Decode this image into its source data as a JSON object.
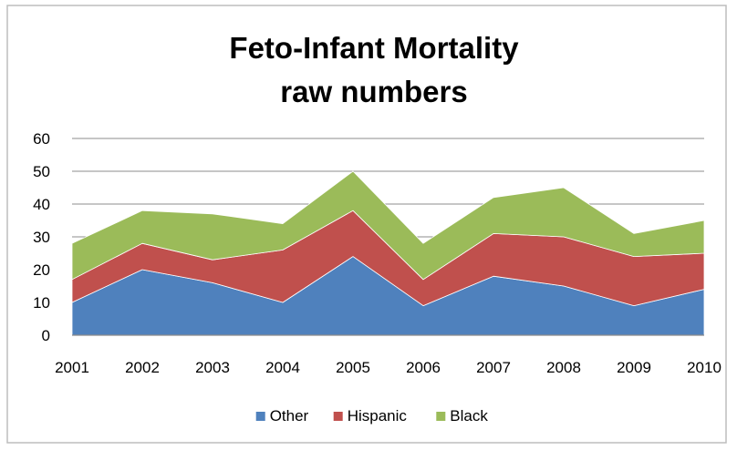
{
  "chart_data": {
    "type": "area",
    "stacked": true,
    "title": [
      "Feto-Infant Mortality",
      "raw numbers"
    ],
    "xlabel": "",
    "ylabel": "",
    "categories": [
      "2001",
      "2002",
      "2003",
      "2004",
      "2005",
      "2006",
      "2007",
      "2008",
      "2009",
      "2010"
    ],
    "ylim": [
      0,
      60
    ],
    "yticks": [
      "0",
      "10",
      "20",
      "30",
      "40",
      "50",
      "60"
    ],
    "grid": true,
    "legend_position": "bottom",
    "series": [
      {
        "name": "Other",
        "color": "#4F81BD",
        "values": [
          10,
          20,
          16,
          10,
          24,
          9,
          18,
          15,
          9,
          14
        ]
      },
      {
        "name": "Hispanic",
        "color": "#C0504D",
        "values": [
          7,
          8,
          7,
          16,
          14,
          8,
          13,
          15,
          15,
          11
        ]
      },
      {
        "name": "Black",
        "color": "#9BBB59",
        "values": [
          11,
          10,
          14,
          8,
          12,
          11,
          11,
          15,
          7,
          10
        ]
      }
    ]
  }
}
